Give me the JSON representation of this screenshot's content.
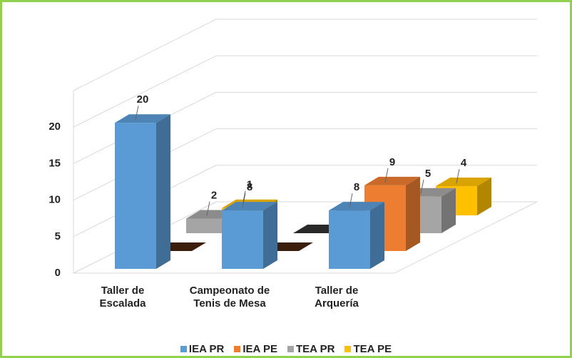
{
  "chart_data": {
    "type": "bar3d",
    "categories": [
      "Taller de Escalada",
      "Campeonato de Tenis de Mesa",
      "Taller de Arquería"
    ],
    "series": [
      {
        "name": "IEA PR",
        "color": "#5b9bd5",
        "values": [
          20,
          8,
          8
        ]
      },
      {
        "name": "IEA PE",
        "color": "#ed7d31",
        "values": [
          0,
          0,
          9
        ]
      },
      {
        "name": "TEA PR",
        "color": "#a5a5a5",
        "values": [
          2,
          0,
          5
        ]
      },
      {
        "name": "TEA PE",
        "color": "#ffc000",
        "values": [
          1,
          0,
          4
        ]
      }
    ],
    "ylim": [
      0,
      25
    ],
    "yticks": [
      0,
      5,
      10,
      15,
      20
    ],
    "grid": true,
    "legend": "bottom"
  }
}
